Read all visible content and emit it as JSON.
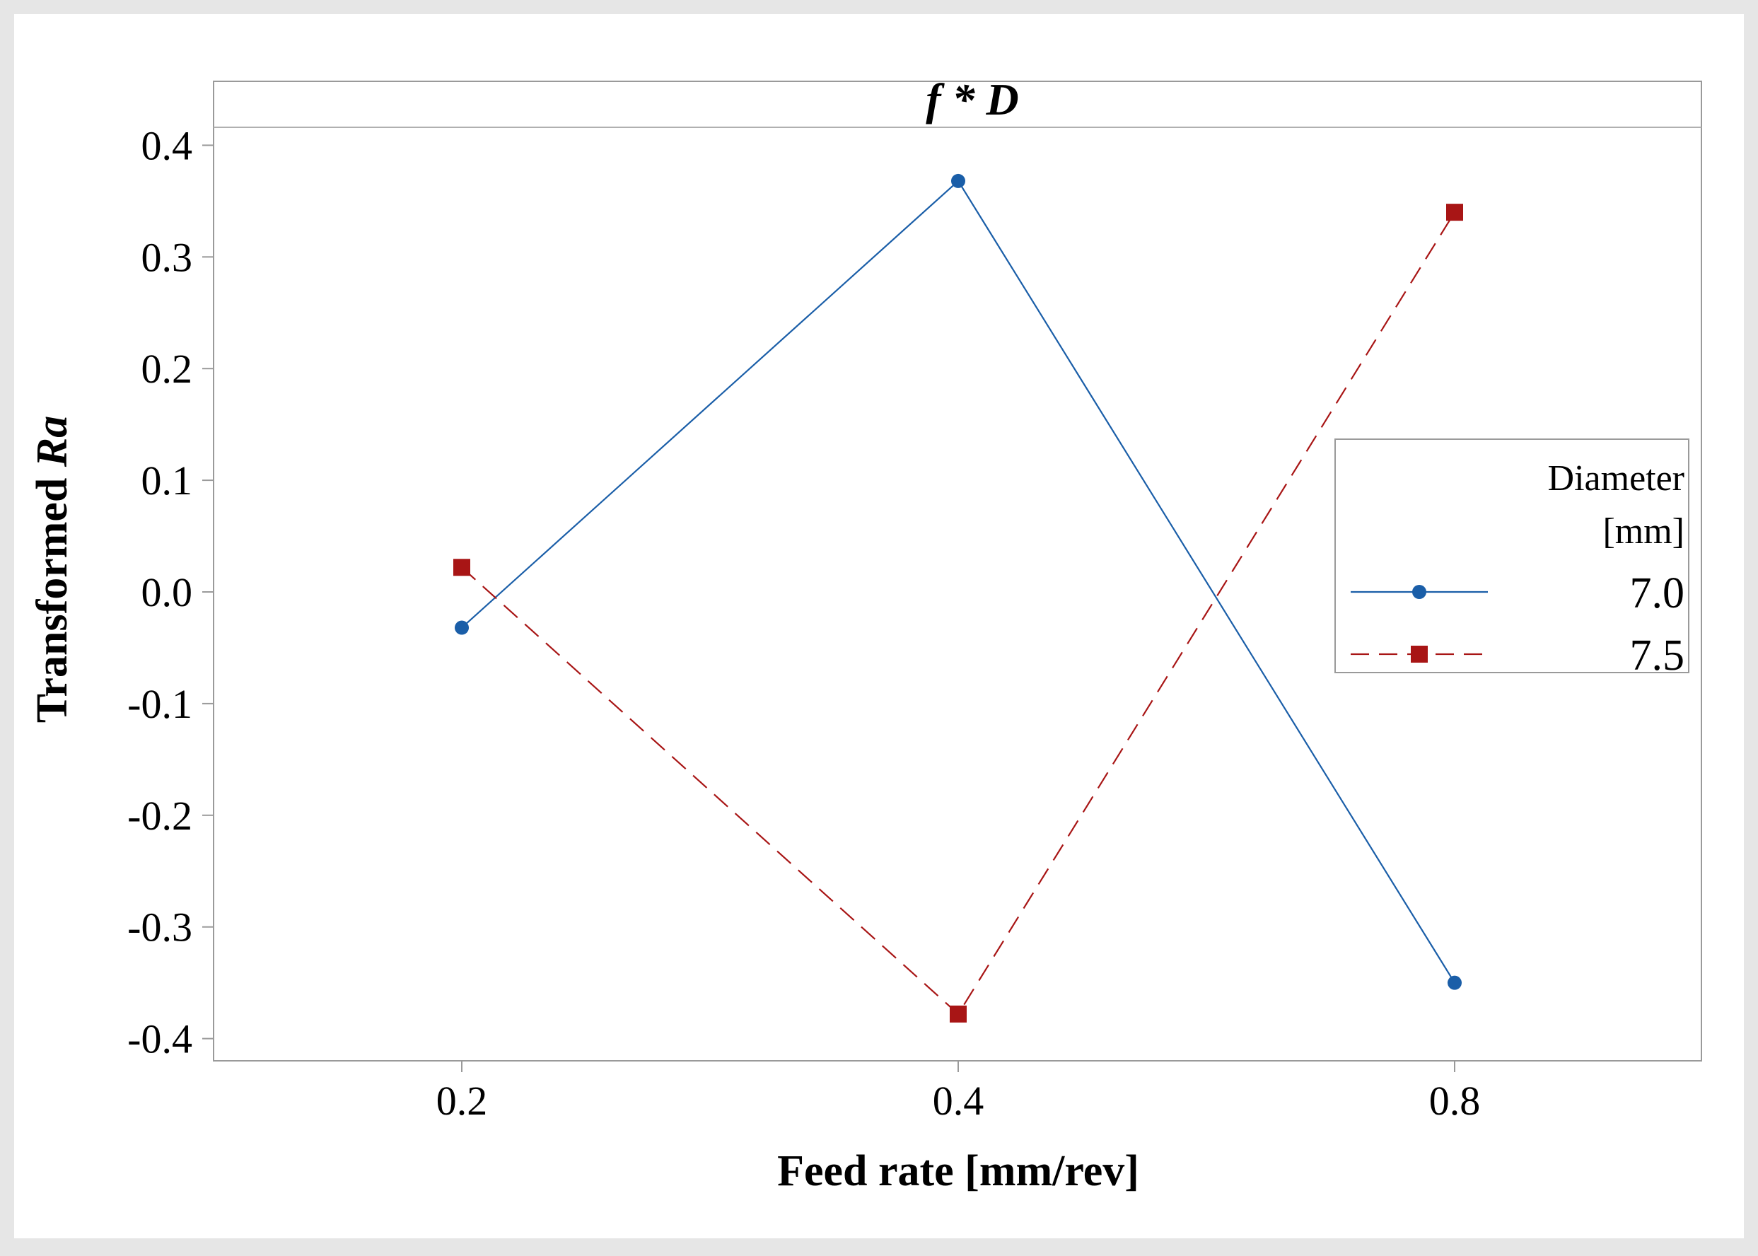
{
  "chart_data": {
    "type": "line",
    "title_parts": [
      "f",
      " * ",
      "D"
    ],
    "xlabel": "Feed rate [mm/rev]",
    "ylabel_parts": [
      "Transformed ",
      "Ra"
    ],
    "categories": [
      "0.2",
      "0.4",
      "0.8"
    ],
    "ylim": [
      -0.42,
      0.42
    ],
    "yticks": [
      0.4,
      0.3,
      0.2,
      0.1,
      0.0,
      -0.1,
      -0.2,
      -0.3,
      -0.4
    ],
    "ytick_labels": [
      "0.4",
      "0.3",
      "0.2",
      "0.1",
      "0.0",
      "-0.1",
      "-0.2",
      "-0.3",
      "-0.4"
    ],
    "legend": {
      "title_lines": [
        "Diameter",
        "[mm]"
      ],
      "position": "right"
    },
    "series": [
      {
        "name": "7.0",
        "values": [
          -0.032,
          0.368,
          -0.35
        ],
        "color": "#1a5ea8",
        "marker": "circle",
        "line_style": "solid"
      },
      {
        "name": "7.5",
        "values": [
          0.022,
          -0.378,
          0.34
        ],
        "color": "#a81515",
        "marker": "square",
        "line_style": "dashed"
      }
    ]
  }
}
